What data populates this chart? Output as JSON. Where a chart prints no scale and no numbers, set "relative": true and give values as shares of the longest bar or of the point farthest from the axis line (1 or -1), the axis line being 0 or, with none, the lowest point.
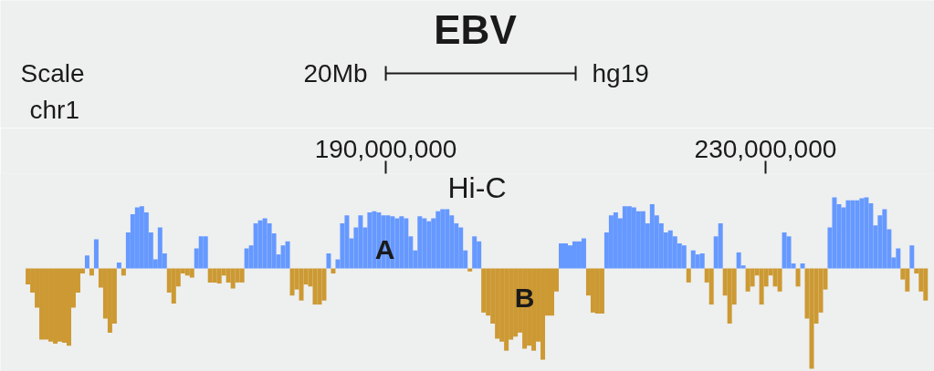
{
  "chart_data": {
    "type": "bar",
    "title": "EBV",
    "subtitle": "Hi-C",
    "xlabel": "chr1",
    "relative": true,
    "annotations": [
      "Scale",
      "20Mb",
      "hg19",
      "A",
      "B"
    ],
    "xlim": [
      152100000,
      247700000
    ],
    "xticks": [
      {
        "value": 190000000,
        "label": "190,000,000"
      },
      {
        "value": 230000000,
        "label": "230,000,000"
      }
    ],
    "x": [
      152300000,
      152780000,
      153260000,
      153740000,
      154220000,
      154700000,
      155180000,
      155660000,
      156140000,
      156620000,
      157100000,
      157580000,
      158060000,
      158540000,
      159020000,
      159500000,
      159980000,
      160460000,
      160940000,
      161420000,
      161900000,
      162380000,
      162860000,
      163340000,
      163820000,
      164300000,
      164780000,
      165260000,
      165740000,
      166220000,
      166700000,
      167180000,
      167660000,
      168140000,
      168620000,
      169100000,
      169580000,
      170060000,
      170540000,
      171020000,
      171500000,
      171980000,
      172460000,
      172940000,
      173420000,
      173900000,
      174380000,
      174860000,
      175340000,
      175820000,
      176300000,
      176780000,
      177260000,
      177740000,
      178220000,
      178700000,
      179180000,
      179660000,
      180140000,
      180620000,
      181100000,
      181580000,
      182060000,
      182540000,
      183020000,
      183500000,
      183980000,
      184460000,
      184940000,
      185420000,
      185900000,
      186380000,
      186860000,
      187340000,
      187820000,
      188300000,
      188780000,
      189260000,
      189740000,
      190220000,
      190700000,
      191180000,
      191660000,
      192140000,
      192620000,
      193100000,
      193580000,
      194060000,
      194540000,
      195020000,
      195500000,
      195980000,
      196460000,
      196940000,
      197420000,
      197900000,
      198380000,
      198860000,
      199340000,
      199820000,
      200300000,
      200780000,
      201260000,
      201740000,
      202220000,
      202700000,
      203180000,
      203660000,
      204140000,
      204620000,
      205100000,
      205580000,
      206060000,
      206540000,
      207020000,
      207500000,
      207980000,
      208460000,
      208940000,
      209420000,
      209900000,
      210380000,
      210860000,
      211340000,
      211820000,
      212300000,
      212780000,
      213260000,
      213740000,
      214220000,
      214700000,
      215180000,
      215660000,
      216140000,
      216620000,
      217100000,
      217580000,
      218060000,
      218540000,
      219020000,
      219500000,
      219980000,
      220460000,
      220940000,
      221420000,
      221900000,
      222380000,
      222860000,
      223340000,
      223820000,
      224300000,
      224780000,
      225260000,
      225740000,
      226220000,
      226700000,
      227180000,
      227660000,
      228140000,
      228620000,
      229100000,
      229580000,
      230060000,
      230540000,
      231020000,
      231500000,
      231980000,
      232460000,
      232940000,
      233420000,
      233900000,
      234380000,
      234860000,
      235340000,
      235820000,
      236300000,
      236780000,
      237260000,
      237740000,
      238220000,
      238700000,
      239180000,
      239660000,
      240140000,
      240620000,
      241100000,
      241580000,
      242060000,
      242540000,
      243020000,
      243500000,
      243980000,
      244460000,
      244940000,
      245420000,
      245900000,
      246380000,
      246860000
    ],
    "series": [
      {
        "color": "#6699ff",
        "values": [
          null,
          null,
          null,
          null,
          null,
          null,
          null,
          null,
          null,
          null,
          null,
          null,
          null,
          0.13,
          null,
          0.29,
          null,
          null,
          null,
          null,
          0.06,
          null,
          0.36,
          0.54,
          0.61,
          0.62,
          0.56,
          0.36,
          0.09,
          0.41,
          0.15,
          null,
          null,
          null,
          null,
          null,
          null,
          0.2,
          0.32,
          0.32,
          null,
          null,
          null,
          null,
          null,
          null,
          null,
          null,
          0.2,
          0.23,
          0.45,
          0.48,
          0.5,
          0.45,
          0.35,
          0.14,
          0.23,
          0.27,
          null,
          null,
          null,
          null,
          null,
          null,
          null,
          null,
          0.15,
          null,
          0.09,
          0.45,
          0.53,
          0.3,
          0.41,
          0.53,
          0.41,
          0.56,
          0.57,
          0.56,
          0.53,
          0.53,
          0.52,
          0.5,
          0.52,
          0.5,
          0.32,
          0.18,
          0.52,
          0.5,
          0.47,
          0.5,
          0.57,
          0.59,
          0.59,
          0.53,
          0.45,
          0.41,
          0.18,
          null,
          0.32,
          0.27,
          null,
          null,
          null,
          null,
          null,
          null,
          null,
          null,
          null,
          null,
          null,
          null,
          null,
          null,
          null,
          null,
          null,
          0.25,
          0.25,
          0.23,
          0.27,
          0.27,
          0.3,
          null,
          null,
          null,
          null,
          0.36,
          0.53,
          0.56,
          0.5,
          0.62,
          0.62,
          0.61,
          0.57,
          0.57,
          0.45,
          0.64,
          0.53,
          0.45,
          0.36,
          0.38,
          0.32,
          0.25,
          0.23,
          null,
          0.18,
          0.14,
          0.15,
          null,
          null,
          0.32,
          0.45,
          null,
          null,
          null,
          0.16,
          0.03,
          null,
          null,
          null,
          null,
          null,
          null,
          null,
          null,
          0.36,
          0.32,
          0.05,
          null,
          0.05,
          null,
          null,
          null,
          null,
          null,
          0.41,
          0.71,
          0.64,
          0.61,
          0.68,
          0.68,
          0.68,
          0.7,
          0.71,
          0.65,
          0.43,
          0.53,
          0.59,
          0.39,
          0.11,
          0.2,
          null,
          null,
          0.23,
          null,
          null,
          null
        ]
      },
      {
        "color": "#cc9933",
        "values": [
          -0.16,
          -0.24,
          -0.39,
          -0.71,
          -0.71,
          -0.73,
          -0.75,
          -0.73,
          -0.74,
          -0.77,
          -0.39,
          -0.24,
          -0.05,
          null,
          -0.07,
          null,
          -0.19,
          -0.5,
          -0.64,
          -0.55,
          null,
          -0.07,
          null,
          null,
          null,
          null,
          null,
          null,
          null,
          null,
          null,
          -0.24,
          -0.35,
          -0.18,
          -0.05,
          -0.07,
          -0.09,
          null,
          null,
          null,
          -0.14,
          -0.14,
          -0.15,
          -0.07,
          -0.14,
          -0.2,
          -0.14,
          -0.14,
          null,
          null,
          null,
          null,
          null,
          null,
          null,
          null,
          null,
          null,
          -0.27,
          -0.21,
          -0.32,
          -0.16,
          -0.18,
          -0.36,
          -0.36,
          -0.32,
          null,
          -0.05,
          null,
          null,
          null,
          null,
          null,
          null,
          null,
          null,
          null,
          null,
          null,
          null,
          null,
          null,
          null,
          null,
          null,
          null,
          null,
          null,
          null,
          null,
          null,
          null,
          null,
          null,
          null,
          null,
          null,
          -0.03,
          null,
          null,
          -0.44,
          -0.47,
          -0.55,
          -0.7,
          -0.73,
          -0.82,
          -0.71,
          -0.68,
          -0.64,
          -0.8,
          -0.77,
          -0.82,
          -0.73,
          -0.91,
          -0.47,
          -0.47,
          -0.23,
          null,
          null,
          null,
          null,
          null,
          null,
          -0.27,
          -0.44,
          -0.45,
          -0.45,
          null,
          null,
          null,
          null,
          null,
          null,
          null,
          null,
          null,
          null,
          null,
          null,
          null,
          null,
          null,
          null,
          null,
          null,
          -0.14,
          null,
          null,
          null,
          -0.14,
          -0.36,
          null,
          null,
          -0.27,
          -0.55,
          -0.36,
          null,
          null,
          -0.23,
          -0.18,
          -0.07,
          -0.36,
          -0.18,
          -0.07,
          -0.18,
          -0.23,
          null,
          null,
          null,
          -0.18,
          null,
          -0.5,
          -1,
          -0.55,
          -0.44,
          -0.21,
          null,
          null,
          null,
          null,
          null,
          null,
          null,
          null,
          null,
          null,
          null,
          null,
          null,
          null,
          null,
          null,
          -0.11,
          -0.23,
          null,
          -0.05,
          -0.23,
          -0.32
        ]
      }
    ],
    "grid": false
  }
}
